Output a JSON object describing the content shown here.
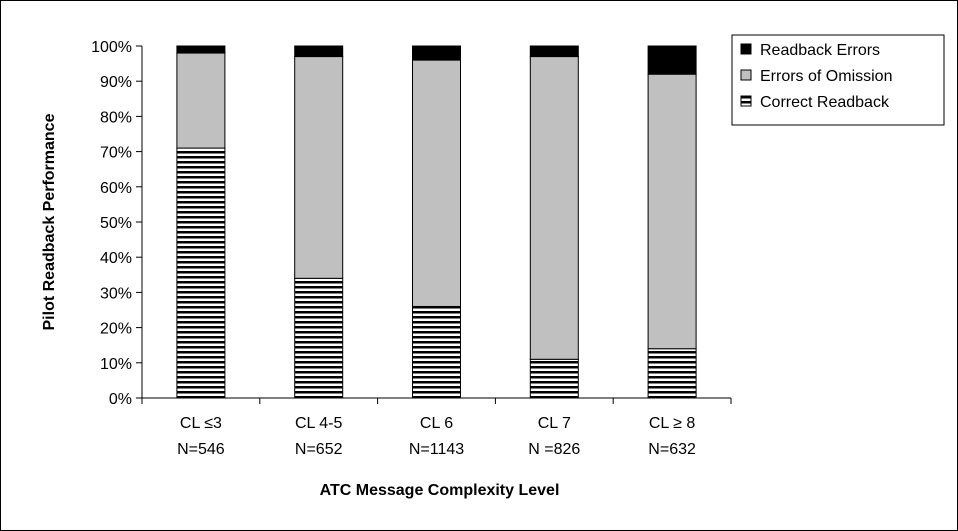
{
  "chart_data": {
    "type": "bar",
    "stacked": true,
    "categories": [
      [
        "CL ≤3",
        "N=546"
      ],
      [
        "CL 4-5",
        "N=652"
      ],
      [
        "CL 6",
        "N=1143"
      ],
      [
        "CL 7",
        "N =826"
      ],
      [
        "CL ≥ 8",
        "N=632"
      ]
    ],
    "series": [
      {
        "name": "Correct Readback",
        "values": [
          71,
          34,
          26,
          11,
          14
        ],
        "color": "#000000",
        "pattern": "horizontal-stripes"
      },
      {
        "name": "Errors of Omission",
        "values": [
          27,
          63,
          70,
          86,
          78
        ],
        "color": "#c0c0c0"
      },
      {
        "name": "Readback Errors",
        "values": [
          2,
          3,
          4,
          3,
          8
        ],
        "color": "#000000"
      }
    ],
    "legend_order": [
      "Readback Errors",
      "Errors of Omission",
      "Correct Readback"
    ],
    "xlabel": "ATC Message Complexity Level",
    "ylabel": "Pilot Readback Performance",
    "ylim": [
      0,
      100
    ],
    "yticks": [
      "0%",
      "10%",
      "20%",
      "30%",
      "40%",
      "50%",
      "60%",
      "70%",
      "80%",
      "90%",
      "100%"
    ],
    "legend_position": "top-right",
    "grid": false
  }
}
